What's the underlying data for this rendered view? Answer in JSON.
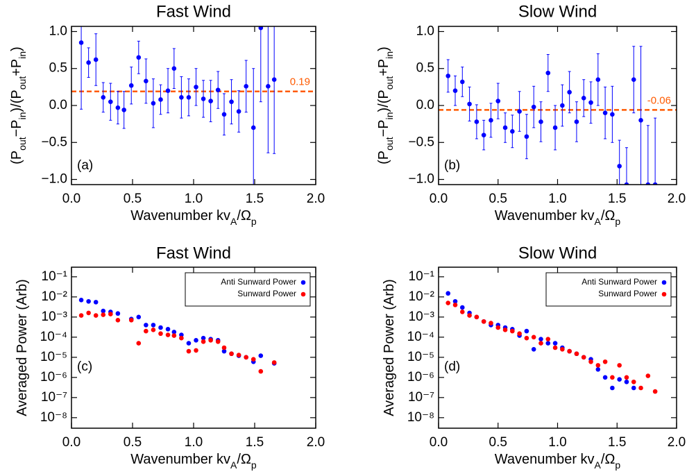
{
  "chart_data": [
    {
      "type": "errorbar",
      "title": "Fast Wind",
      "label": "(a)",
      "xlabel": [
        "Wavenumber kv",
        "A",
        "/Ω",
        "p"
      ],
      "ylabel": [
        "(P",
        "out",
        "−P",
        "in",
        ")/(P",
        "out",
        "+P",
        "in",
        ")"
      ],
      "x": [
        0.08,
        0.14,
        0.2,
        0.26,
        0.32,
        0.38,
        0.43,
        0.49,
        0.55,
        0.61,
        0.67,
        0.73,
        0.79,
        0.84,
        0.9,
        0.96,
        1.02,
        1.08,
        1.14,
        1.2,
        1.25,
        1.31,
        1.37,
        1.43,
        1.49,
        1.55,
        1.61,
        1.66
      ],
      "values": [
        0.85,
        0.58,
        0.62,
        0.11,
        0.05,
        -0.03,
        -0.06,
        0.27,
        0.65,
        0.33,
        0.03,
        0.08,
        0.2,
        0.5,
        0.11,
        0.11,
        0.25,
        0.09,
        0.06,
        0.21,
        -0.12,
        0.05,
        -0.08,
        0.26,
        -0.3,
        1.05,
        0.26,
        0.35
      ],
      "errors": [
        0.9,
        0.2,
        0.35,
        0.2,
        0.25,
        0.22,
        0.25,
        0.25,
        0.22,
        0.3,
        0.33,
        0.2,
        0.3,
        0.27,
        0.28,
        0.25,
        0.25,
        0.25,
        0.28,
        0.25,
        0.28,
        0.3,
        0.28,
        0.35,
        0.8,
        1.0,
        0.9,
        1.0
      ],
      "color": "#0000ff",
      "reference_line": 0.19,
      "reference_color": "#ff5a00",
      "xlim": [
        0,
        2
      ],
      "xticks": [
        {
          "value": 0,
          "label": "0.0"
        },
        0.5,
        {
          "value": 1,
          "label": "1.0"
        },
        1.5,
        {
          "value": 2,
          "label": "2.0"
        }
      ],
      "ylim": [
        -1.07,
        1.07
      ],
      "yticks": [
        {
          "value": -1,
          "label": "−1.0"
        },
        {
          "value": -0.5,
          "label": "−0.5"
        },
        {
          "value": 0,
          "label": "0.0"
        },
        0.5,
        {
          "value": 1,
          "label": "1.0"
        }
      ]
    },
    {
      "type": "errorbar",
      "title": "Slow Wind",
      "label": "(b)",
      "xlabel": [
        "Wavenumber kv",
        "A",
        "/Ω",
        "p"
      ],
      "ylabel": [
        "(P",
        "out",
        "−P",
        "in",
        ")/(P",
        "out",
        "+P",
        "in",
        ")"
      ],
      "x": [
        0.08,
        0.14,
        0.2,
        0.26,
        0.32,
        0.38,
        0.44,
        0.5,
        0.56,
        0.62,
        0.68,
        0.74,
        0.8,
        0.86,
        0.92,
        0.98,
        1.04,
        1.1,
        1.16,
        1.22,
        1.28,
        1.34,
        1.4,
        1.46,
        1.52,
        1.58,
        1.64,
        1.7,
        1.76,
        1.82
      ],
      "values": [
        0.4,
        0.2,
        0.32,
        0.02,
        -0.22,
        -0.4,
        -0.2,
        0.06,
        -0.3,
        -0.35,
        -0.08,
        -0.42,
        -0.02,
        -0.22,
        0.44,
        -0.3,
        0.0,
        0.18,
        -0.22,
        0.1,
        0.04,
        0.35,
        -0.1,
        -0.12,
        -0.82,
        -1.07,
        0.35,
        -0.2,
        -1.07,
        -1.07
      ],
      "errors": [
        0.22,
        0.2,
        0.2,
        0.23,
        0.23,
        0.2,
        0.23,
        0.24,
        0.2,
        0.22,
        0.27,
        0.3,
        0.28,
        0.27,
        0.25,
        0.3,
        0.28,
        0.28,
        0.27,
        0.25,
        0.28,
        0.35,
        0.35,
        0.38,
        0.35,
        0.5,
        0.45,
        1.0,
        0.8,
        0.9
      ],
      "color": "#0000ff",
      "reference_line": -0.06,
      "reference_color": "#ff5a00",
      "xlim": [
        0,
        2
      ],
      "xticks": [
        {
          "value": 0,
          "label": "0.0"
        },
        0.5,
        {
          "value": 1,
          "label": "1.0"
        },
        1.5,
        {
          "value": 2,
          "label": "2.0"
        }
      ],
      "ylim": [
        -1.07,
        1.07
      ],
      "yticks": [
        {
          "value": -1,
          "label": "−1.0"
        },
        {
          "value": -0.5,
          "label": "−0.5"
        },
        {
          "value": 0,
          "label": "0.0"
        },
        0.5,
        {
          "value": 1,
          "label": "1.0"
        }
      ]
    },
    {
      "type": "scatter",
      "title": "Fast Wind",
      "label": "(c)",
      "xlabel": [
        "Wavenumber kv",
        "A",
        "/Ω",
        "p"
      ],
      "ylabel": [
        "Averaged Power (Arb)"
      ],
      "x": [
        0.08,
        0.14,
        0.2,
        0.26,
        0.32,
        0.38,
        0.49,
        0.55,
        0.61,
        0.67,
        0.73,
        0.79,
        0.84,
        0.9,
        0.96,
        1.02,
        1.08,
        1.14,
        1.2,
        1.25,
        1.31,
        1.37,
        1.43,
        1.49,
        1.55,
        1.66
      ],
      "series": [
        {
          "name": "Anti Sunward Power",
          "color": "#0000ff",
          "values": [
            0.007,
            0.006,
            0.0055,
            0.002,
            0.0018,
            0.0015,
            0.0008,
            0.001,
            0.0004,
            0.0004,
            0.0003,
            0.00025,
            0.00018,
            0.00013,
            5e-05,
            7e-05,
            9e-05,
            8e-05,
            7e-05,
            2e-05,
            1.5e-05,
            1.2e-05,
            1e-05,
            6e-06,
            1.2e-05,
            5e-06
          ]
        },
        {
          "name": "Sunward Power",
          "color": "#ff0000",
          "values": [
            0.0012,
            0.0016,
            0.0012,
            0.0013,
            0.0014,
            0.0007,
            0.0007,
            5e-05,
            0.0002,
            0.00023,
            0.00015,
            0.00013,
            0.00012,
            9e-05,
            2e-05,
            2.2e-05,
            6e-05,
            7e-05,
            6e-05,
            3e-05,
            1.5e-05,
            1.3e-05,
            1e-05,
            8e-06,
            2e-06,
            5.5e-06
          ]
        }
      ],
      "legend": "upper right",
      "ylog": true,
      "xlim": [
        0,
        2
      ],
      "xticks": [
        {
          "value": 0,
          "label": "0.0"
        },
        0.5,
        {
          "value": 1,
          "label": "1.0"
        },
        1.5,
        {
          "value": 2,
          "label": "2.0"
        }
      ],
      "ylim": [
        3e-09,
        0.3
      ],
      "yticks": [
        {
          "value": 1e-08,
          "label": "10⁻⁸"
        },
        {
          "value": 1e-07,
          "label": "10⁻⁷"
        },
        {
          "value": 1e-06,
          "label": "10⁻⁶"
        },
        {
          "value": 1e-05,
          "label": "10⁻⁵"
        },
        {
          "value": 0.0001,
          "label": "10⁻⁴"
        },
        {
          "value": 0.001,
          "label": "10⁻³"
        },
        {
          "value": 0.01,
          "label": "10⁻²"
        },
        {
          "value": 0.1,
          "label": "10⁻¹"
        }
      ]
    },
    {
      "type": "scatter",
      "title": "Slow Wind",
      "label": "(d)",
      "xlabel": [
        "Wavenumber kv",
        "A",
        "/Ω",
        "p"
      ],
      "ylabel": [
        "Averaged Power (Arb)"
      ],
      "x": [
        0.08,
        0.14,
        0.2,
        0.26,
        0.32,
        0.38,
        0.44,
        0.5,
        0.56,
        0.62,
        0.68,
        0.74,
        0.8,
        0.86,
        0.92,
        0.98,
        1.04,
        1.1,
        1.16,
        1.22,
        1.28,
        1.34,
        1.4,
        1.46,
        1.52,
        1.58,
        1.64,
        1.7,
        1.76,
        1.82
      ],
      "series": [
        {
          "name": "Anti Sunward Power",
          "color": "#0000ff",
          "values": [
            0.015,
            0.006,
            0.003,
            0.0016,
            0.001,
            0.0006,
            0.0004,
            0.0004,
            0.0003,
            0.00025,
            0.00012,
            0.0002,
            2.5e-05,
            8e-05,
            5e-05,
            5e-05,
            3e-05,
            2e-05,
            1.5e-05,
            1e-05,
            8e-06,
            2.5e-06,
            1e-06,
            3e-07,
            8e-07,
            6e-07,
            3e-07,
            null,
            null,
            null
          ]
        },
        {
          "name": "Sunward Power",
          "color": "#ff0000",
          "values": [
            0.005,
            0.004,
            0.0018,
            0.0012,
            0.001,
            0.0006,
            0.0005,
            0.0003,
            0.00023,
            0.0002,
            0.00015,
            9e-05,
            0.0001,
            5e-05,
            8e-05,
            3e-05,
            2.5e-05,
            2e-05,
            1.5e-05,
            1e-05,
            6e-06,
            4e-06,
            6e-06,
            1e-06,
            4e-06,
            1e-06,
            6e-07,
            3e-07,
            1.2e-06,
            2e-07
          ]
        }
      ],
      "legend": "upper right",
      "ylog": true,
      "xlim": [
        0,
        2
      ],
      "xticks": [
        {
          "value": 0,
          "label": "0.0"
        },
        0.5,
        {
          "value": 1,
          "label": "1.0"
        },
        1.5,
        {
          "value": 2,
          "label": "2.0"
        }
      ],
      "ylim": [
        3e-09,
        0.3
      ],
      "yticks": [
        {
          "value": 1e-08,
          "label": "10⁻⁸"
        },
        {
          "value": 1e-07,
          "label": "10⁻⁷"
        },
        {
          "value": 1e-06,
          "label": "10⁻⁶"
        },
        {
          "value": 1e-05,
          "label": "10⁻⁵"
        },
        {
          "value": 0.0001,
          "label": "10⁻⁴"
        },
        {
          "value": 0.001,
          "label": "10⁻³"
        },
        {
          "value": 0.01,
          "label": "10⁻²"
        },
        {
          "value": 0.1,
          "label": "10⁻¹"
        }
      ]
    }
  ]
}
